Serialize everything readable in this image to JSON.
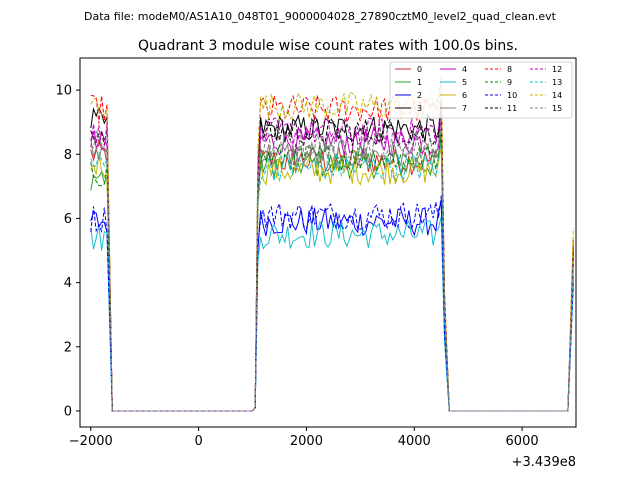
{
  "chart_data": {
    "type": "line",
    "header": "Data file: modeM0/AS1A10_048T01_9000004028_27890cztM0_level2_quad_clean.evt",
    "title": "Quadrant 3 module wise count rates with 100.0s bins.",
    "xlabel": "",
    "ylabel": "",
    "x_offset_label": "+3.439e8",
    "xlim": [
      -2200,
      7000
    ],
    "ylim": [
      -0.5,
      11
    ],
    "x_ticks": [
      -2000,
      0,
      2000,
      4000,
      6000
    ],
    "x_tick_labels": [
      "−2000",
      "0",
      "2000",
      "4000",
      "6000"
    ],
    "y_ticks": [
      0,
      2,
      4,
      6,
      8,
      10
    ],
    "y_tick_labels": [
      "0",
      "2",
      "4",
      "6",
      "8",
      "10"
    ],
    "legend_position": "top-right",
    "series": [
      {
        "name": "0",
        "color": "#d62728",
        "dash": "solid",
        "level1": 8.0,
        "level2": 7.8,
        "end": 5.2
      },
      {
        "name": "1",
        "color": "#2ca02c",
        "dash": "solid",
        "level1": 7.3,
        "level2": 7.7,
        "end": 4.8
      },
      {
        "name": "2",
        "color": "#0000ff",
        "dash": "solid",
        "level1": 5.9,
        "level2": 5.9,
        "end": 4.2
      },
      {
        "name": "3",
        "color": "#000000",
        "dash": "solid",
        "level1": 9.0,
        "level2": 8.8,
        "end": 5.0
      },
      {
        "name": "4",
        "color": "#bf00bf",
        "dash": "solid",
        "level1": 8.3,
        "level2": 8.4,
        "end": 5.1
      },
      {
        "name": "5",
        "color": "#17becf",
        "dash": "solid",
        "level1": 5.4,
        "level2": 5.5,
        "end": 3.9
      },
      {
        "name": "6",
        "color": "#c8b400",
        "dash": "solid",
        "level1": 7.7,
        "level2": 7.5,
        "end": 4.5
      },
      {
        "name": "7",
        "color": "#808080",
        "dash": "solid",
        "level1": 8.1,
        "level2": 8.0,
        "end": 4.7
      },
      {
        "name": "8",
        "color": "#ff0000",
        "dash": "dashed",
        "level1": 9.4,
        "level2": 9.4,
        "end": 5.4
      },
      {
        "name": "9",
        "color": "#008000",
        "dash": "dashed",
        "level1": 7.4,
        "level2": 7.9,
        "end": 4.6
      },
      {
        "name": "10",
        "color": "#0000ff",
        "dash": "dashed",
        "level1": 6.0,
        "level2": 6.1,
        "end": 4.0
      },
      {
        "name": "11",
        "color": "#000000",
        "dash": "dashed",
        "level1": 8.7,
        "level2": 8.7,
        "end": 4.9
      },
      {
        "name": "12",
        "color": "#bf00bf",
        "dash": "dashed",
        "level1": 8.6,
        "level2": 8.7,
        "end": 5.0
      },
      {
        "name": "13",
        "color": "#17becf",
        "dash": "dashed",
        "level1": 7.7,
        "level2": 7.6,
        "end": 4.4
      },
      {
        "name": "14",
        "color": "#c8b400",
        "dash": "dashed",
        "level1": 9.6,
        "level2": 9.5,
        "end": 5.7
      },
      {
        "name": "15",
        "color": "#808080",
        "dash": "dashed",
        "level1": 8.3,
        "level2": 8.3,
        "end": 4.8
      }
    ]
  }
}
